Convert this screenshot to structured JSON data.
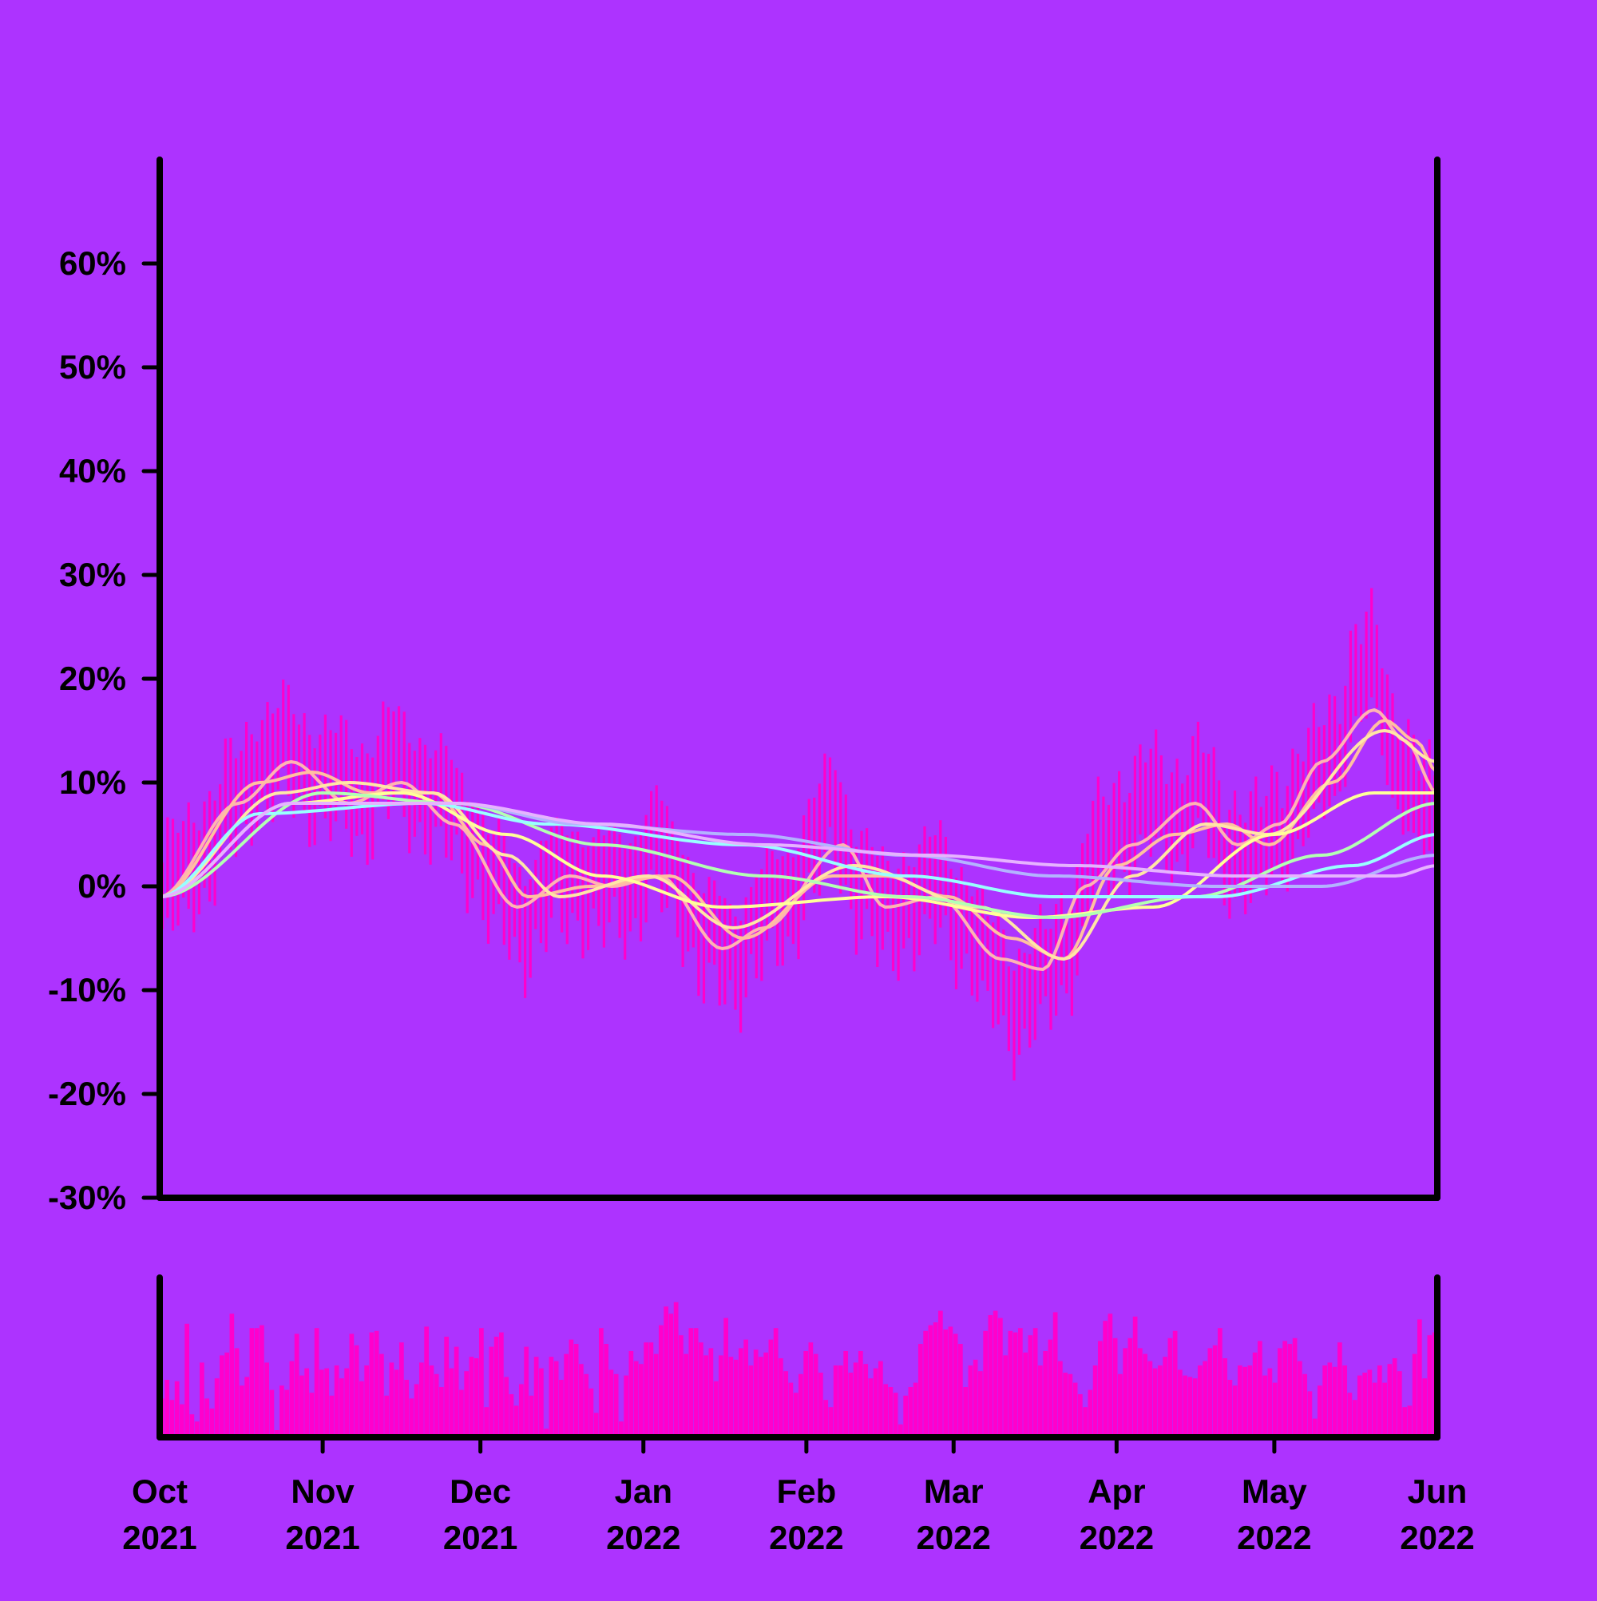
{
  "colors": {
    "background": "#ad33ff",
    "axis": "#000000",
    "bars": "#ff00cc",
    "moving_averages": [
      "#ffb3b3",
      "#ffc0a0",
      "#ffe6a6",
      "#ffff99",
      "#b3ffb3",
      "#99ffff",
      "#b3b3ff",
      "#e6b3ff",
      "#ffccff"
    ]
  },
  "chart_data": [
    {
      "type": "bar+line",
      "panel": "price",
      "title": "",
      "xlabel": "",
      "ylabel": "",
      "x_domain": [
        "2021-10-01",
        "2022-06-01"
      ],
      "ylim": [
        -30,
        70
      ],
      "y_ticks": [
        -30,
        -20,
        -10,
        0,
        10,
        20,
        30,
        40,
        50,
        60
      ],
      "y_tick_labels": [
        "-30%",
        "-20%",
        "-10%",
        "0%",
        "10%",
        "20%",
        "30%",
        "40%",
        "50%",
        "60%"
      ],
      "x_ticks": [
        "2021-10-01",
        "2021-11-01",
        "2021-12-01",
        "2022-01-01",
        "2022-02-01",
        "2022-03-01",
        "2022-04-01",
        "2022-05-01",
        "2022-06-01"
      ],
      "x_tick_labels": [
        {
          "month": "Oct",
          "year": "2021"
        },
        {
          "month": "Nov",
          "year": "2021"
        },
        {
          "month": "Dec",
          "year": "2021"
        },
        {
          "month": "Jan",
          "year": "2022"
        },
        {
          "month": "Feb",
          "year": "2022"
        },
        {
          "month": "Mar",
          "year": "2022"
        },
        {
          "month": "Apr",
          "year": "2022"
        },
        {
          "month": "May",
          "year": "2022"
        },
        {
          "month": "Jun",
          "year": "2022"
        }
      ],
      "grid": false,
      "legend": "none",
      "daily_return_anchors": [
        [
          "2021-10-01",
          -1
        ],
        [
          "2021-10-05",
          1
        ],
        [
          "2021-10-10",
          4
        ],
        [
          "2021-10-15",
          8
        ],
        [
          "2021-10-20",
          12
        ],
        [
          "2021-10-25",
          13
        ],
        [
          "2021-10-30",
          11
        ],
        [
          "2021-11-04",
          10
        ],
        [
          "2021-11-09",
          9
        ],
        [
          "2021-11-14",
          12
        ],
        [
          "2021-11-19",
          10
        ],
        [
          "2021-11-24",
          8
        ],
        [
          "2021-11-29",
          5
        ],
        [
          "2021-12-04",
          0
        ],
        [
          "2021-12-09",
          -3
        ],
        [
          "2021-12-14",
          0
        ],
        [
          "2021-12-19",
          1
        ],
        [
          "2021-12-24",
          0
        ],
        [
          "2021-12-29",
          0
        ],
        [
          "2022-01-03",
          4
        ],
        [
          "2022-01-08",
          0
        ],
        [
          "2022-01-13",
          -5
        ],
        [
          "2022-01-18",
          -7
        ],
        [
          "2022-01-23",
          -3
        ],
        [
          "2022-01-28",
          -2
        ],
        [
          "2022-02-02",
          4
        ],
        [
          "2022-02-06",
          7
        ],
        [
          "2022-02-11",
          1
        ],
        [
          "2022-02-16",
          -3
        ],
        [
          "2022-02-21",
          -1
        ],
        [
          "2022-02-26",
          0
        ],
        [
          "2022-03-03",
          -3
        ],
        [
          "2022-03-08",
          -8
        ],
        [
          "2022-03-13",
          -11
        ],
        [
          "2022-03-18",
          -9
        ],
        [
          "2022-03-23",
          -5
        ],
        [
          "2022-03-28",
          3
        ],
        [
          "2022-04-02",
          6
        ],
        [
          "2022-04-07",
          8
        ],
        [
          "2022-04-12",
          7
        ],
        [
          "2022-04-17",
          9
        ],
        [
          "2022-04-22",
          4
        ],
        [
          "2022-04-27",
          3
        ],
        [
          "2022-05-02",
          6
        ],
        [
          "2022-05-07",
          9
        ],
        [
          "2022-05-12",
          13
        ],
        [
          "2022-05-17",
          20
        ],
        [
          "2022-05-20",
          21
        ],
        [
          "2022-05-24",
          13
        ],
        [
          "2022-05-28",
          8
        ],
        [
          "2022-06-01",
          6
        ]
      ],
      "series": [
        {
          "ma_days": 5,
          "points": [
            [
              "2021-10-01",
              -1
            ],
            [
              "2021-10-16",
              8
            ],
            [
              "2021-10-26",
              12
            ],
            [
              "2021-11-06",
              8
            ],
            [
              "2021-11-16",
              10
            ],
            [
              "2021-11-26",
              6
            ],
            [
              "2021-12-08",
              -2
            ],
            [
              "2021-12-18",
              1
            ],
            [
              "2021-12-26",
              0
            ],
            [
              "2022-01-04",
              1
            ],
            [
              "2022-01-16",
              -6
            ],
            [
              "2022-01-24",
              -4
            ],
            [
              "2022-02-08",
              4
            ],
            [
              "2022-02-16",
              -2
            ],
            [
              "2022-02-26",
              -1
            ],
            [
              "2022-03-10",
              -7
            ],
            [
              "2022-03-18",
              -8
            ],
            [
              "2022-03-26",
              0
            ],
            [
              "2022-04-04",
              4
            ],
            [
              "2022-04-16",
              8
            ],
            [
              "2022-04-24",
              4
            ],
            [
              "2022-05-02",
              6
            ],
            [
              "2022-05-10",
              12
            ],
            [
              "2022-05-20",
              17
            ],
            [
              "2022-05-26",
              14
            ],
            [
              "2022-06-01",
              9
            ]
          ]
        },
        {
          "ma_days": 10,
          "points": [
            [
              "2021-10-01",
              -1
            ],
            [
              "2021-10-20",
              10
            ],
            [
              "2021-10-30",
              11
            ],
            [
              "2021-11-10",
              9
            ],
            [
              "2021-11-22",
              9
            ],
            [
              "2021-12-02",
              4
            ],
            [
              "2021-12-10",
              -1
            ],
            [
              "2021-12-22",
              0
            ],
            [
              "2022-01-06",
              1
            ],
            [
              "2022-01-20",
              -5
            ],
            [
              "2022-02-06",
              1
            ],
            [
              "2022-02-16",
              1
            ],
            [
              "2022-02-28",
              -1
            ],
            [
              "2022-03-12",
              -5
            ],
            [
              "2022-03-22",
              -7
            ],
            [
              "2022-04-01",
              2
            ],
            [
              "2022-04-12",
              5
            ],
            [
              "2022-04-22",
              6
            ],
            [
              "2022-04-30",
              4
            ],
            [
              "2022-05-12",
              10
            ],
            [
              "2022-05-22",
              16
            ],
            [
              "2022-05-28",
              14
            ],
            [
              "2022-06-01",
              11
            ]
          ]
        },
        {
          "ma_days": 20,
          "points": [
            [
              "2021-10-01",
              -1
            ],
            [
              "2021-10-24",
              9
            ],
            [
              "2021-11-06",
              10
            ],
            [
              "2021-11-22",
              9
            ],
            [
              "2021-12-06",
              3
            ],
            [
              "2021-12-16",
              -1
            ],
            [
              "2022-01-02",
              1
            ],
            [
              "2022-01-18",
              -4
            ],
            [
              "2022-02-10",
              2
            ],
            [
              "2022-03-06",
              -2
            ],
            [
              "2022-03-22",
              -7
            ],
            [
              "2022-04-04",
              1
            ],
            [
              "2022-04-18",
              6
            ],
            [
              "2022-04-30",
              5
            ],
            [
              "2022-05-22",
              15
            ],
            [
              "2022-06-01",
              12
            ]
          ]
        },
        {
          "ma_days": 50,
          "points": [
            [
              "2021-10-01",
              -1
            ],
            [
              "2021-10-26",
              8
            ],
            [
              "2021-11-16",
              9
            ],
            [
              "2021-12-06",
              5
            ],
            [
              "2021-12-24",
              1
            ],
            [
              "2022-01-16",
              -2
            ],
            [
              "2022-02-16",
              -1
            ],
            [
              "2022-03-16",
              -3
            ],
            [
              "2022-04-08",
              -2
            ],
            [
              "2022-05-01",
              5
            ],
            [
              "2022-05-20",
              9
            ],
            [
              "2022-06-01",
              9
            ]
          ]
        },
        {
          "ma_days": 100,
          "points": [
            [
              "2021-10-01",
              -1
            ],
            [
              "2021-11-01",
              9
            ],
            [
              "2021-11-26",
              8
            ],
            [
              "2021-12-24",
              4
            ],
            [
              "2022-01-24",
              1
            ],
            [
              "2022-02-20",
              -1
            ],
            [
              "2022-03-20",
              -3
            ],
            [
              "2022-04-16",
              -1
            ],
            [
              "2022-05-10",
              3
            ],
            [
              "2022-06-01",
              8
            ]
          ]
        },
        {
          "ma_days": 150,
          "points": [
            [
              "2021-10-01",
              -1
            ],
            [
              "2021-10-20",
              7
            ],
            [
              "2021-11-20",
              8
            ],
            [
              "2021-12-14",
              6
            ],
            [
              "2022-01-20",
              4
            ],
            [
              "2022-02-20",
              1
            ],
            [
              "2022-03-20",
              -1
            ],
            [
              "2022-04-20",
              -1
            ],
            [
              "2022-05-16",
              2
            ],
            [
              "2022-06-01",
              5
            ]
          ]
        },
        {
          "ma_days": 200,
          "points": [
            [
              "2021-10-01",
              -1
            ],
            [
              "2021-10-26",
              8
            ],
            [
              "2021-11-26",
              8
            ],
            [
              "2021-12-20",
              6
            ],
            [
              "2022-01-20",
              5
            ],
            [
              "2022-02-20",
              3
            ],
            [
              "2022-03-20",
              1
            ],
            [
              "2022-04-20",
              0
            ],
            [
              "2022-05-10",
              0
            ],
            [
              "2022-06-01",
              3
            ]
          ]
        },
        {
          "ma_days": 250,
          "points": [
            [
              "2021-10-01",
              -1
            ],
            [
              "2021-10-26",
              8
            ],
            [
              "2021-11-26",
              8
            ],
            [
              "2021-12-24",
              6
            ],
            [
              "2022-01-24",
              4
            ],
            [
              "2022-02-24",
              3
            ],
            [
              "2022-03-24",
              2
            ],
            [
              "2022-04-24",
              1
            ],
            [
              "2022-05-24",
              1
            ],
            [
              "2022-06-01",
              2
            ]
          ]
        }
      ]
    },
    {
      "type": "bar",
      "panel": "volume",
      "x_domain": [
        "2021-10-01",
        "2022-06-01"
      ],
      "ylim": [
        0,
        1
      ],
      "values": [
        0.27,
        0.4,
        0.26,
        0.39,
        0.23,
        0.79,
        0.16,
        0.11,
        0.52,
        0.27,
        0.2,
        0.41,
        0.57,
        0.59,
        0.86,
        0.62,
        0.36,
        0.42,
        0.76,
        0.76,
        0.78,
        0.52,
        0.33,
        0.05,
        0.36,
        0.33,
        0.53,
        0.72,
        0.43,
        0.48,
        0.31,
        0.76,
        0.47,
        0.48,
        0.29,
        0.5,
        0.41,
        0.48,
        0.72,
        0.64,
        0.39,
        0.5,
        0.73,
        0.74,
        0.58,
        0.29,
        0.52,
        0.47,
        0.66,
        0.4,
        0.27,
        0.37,
        0.52,
        0.77,
        0.5,
        0.44,
        0.35,
        0.7,
        0.48,
        0.63,
        0.33,
        0.46,
        0.56,
        0.55,
        0.76,
        0.21,
        0.63,
        0.7,
        0.73,
        0.42,
        0.3,
        0.22,
        0.37,
        0.63,
        0.29,
        0.56,
        0.48,
        0.06,
        0.56,
        0.53,
        0.4,
        0.58,
        0.68,
        0.65,
        0.51,
        0.44,
        0.34,
        0.17,
        0.76,
        0.65,
        0.47,
        0.44,
        0.11,
        0.43,
        0.6,
        0.53,
        0.51,
        0.66,
        0.66,
        0.58,
        0.78,
        0.91,
        0.86,
        0.94,
        0.71,
        0.58,
        0.76,
        0.76,
        0.66,
        0.57,
        0.62,
        0.39,
        0.57,
        0.83,
        0.56,
        0.54,
        0.62,
        0.68,
        0.5,
        0.61,
        0.56,
        0.59,
        0.68,
        0.76,
        0.55,
        0.46,
        0.38,
        0.31,
        0.44,
        0.6,
        0.66,
        0.58,
        0.45,
        0.26,
        0.21,
        0.5,
        0.5,
        0.6,
        0.45,
        0.52,
        0.6,
        0.51,
        0.41,
        0.48,
        0.53,
        0.37,
        0.35,
        0.31,
        0.09,
        0.29,
        0.35,
        0.38,
        0.65,
        0.74,
        0.78,
        0.8,
        0.88,
        0.75,
        0.77,
        0.72,
        0.65,
        0.35,
        0.5,
        0.54,
        0.46,
        0.74,
        0.85,
        0.88,
        0.83,
        0.57,
        0.74,
        0.73,
        0.76,
        0.59,
        0.71,
        0.76,
        0.5,
        0.6,
        0.68,
        0.87,
        0.53,
        0.45,
        0.44,
        0.38,
        0.3,
        0.21,
        0.33,
        0.5,
        0.67,
        0.81,
        0.86,
        0.69,
        0.44,
        0.62,
        0.69,
        0.84,
        0.62,
        0.58,
        0.53,
        0.48,
        0.5,
        0.56,
        0.69,
        0.74,
        0.47,
        0.43,
        0.42,
        0.41,
        0.5,
        0.53,
        0.62,
        0.64,
        0.76,
        0.55,
        0.4,
        0.36,
        0.5,
        0.49,
        0.5,
        0.59,
        0.67,
        0.43,
        0.48,
        0.38,
        0.62,
        0.67,
        0.65,
        0.69,
        0.53,
        0.44,
        0.32,
        0.13,
        0.36,
        0.5,
        0.52,
        0.49,
        0.66,
        0.5,
        0.31,
        0.26,
        0.43,
        0.45,
        0.47,
        0.38,
        0.5,
        0.38,
        0.51,
        0.55,
        0.46,
        0.21,
        0.22,
        0.58,
        0.82,
        0.41,
        0.71,
        0.73
      ]
    }
  ]
}
